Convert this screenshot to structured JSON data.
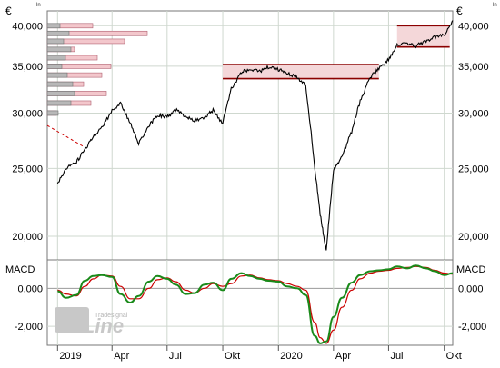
{
  "chart_data": [
    {
      "type": "candlestick",
      "currency_label": "€",
      "corner_mark": "ln",
      "y_scale": "log",
      "ylim": [
        18500,
        42000
      ],
      "y_ticks": [
        "40,000",
        "35,000",
        "30,000",
        "25,000",
        "20,000"
      ],
      "y_tick_values": [
        40000,
        35000,
        30000,
        25000,
        20000
      ],
      "x_tick_labels": [
        "2019",
        "Apr",
        "Jul",
        "Okt",
        "2020",
        "Apr",
        "Jul",
        "Okt"
      ],
      "grid": true,
      "series": [
        {
          "x": [
            "2019-01-01",
            "2019-01-15",
            "2019-02-01",
            "2019-02-15",
            "2019-03-01",
            "2019-03-15",
            "2019-04-01",
            "2019-04-15",
            "2019-05-01",
            "2019-05-15",
            "2019-06-01",
            "2019-06-15",
            "2019-07-01",
            "2019-07-15",
            "2019-08-01",
            "2019-08-15",
            "2019-09-01",
            "2019-09-15",
            "2019-10-01",
            "2019-10-15",
            "2019-11-01",
            "2019-11-15",
            "2019-12-01",
            "2019-12-15",
            "2020-01-01",
            "2020-01-15",
            "2020-02-01",
            "2020-02-15",
            "2020-03-01",
            "2020-03-10",
            "2020-03-20",
            "2020-04-01",
            "2020-04-15",
            "2020-05-01",
            "2020-05-15",
            "2020-06-01",
            "2020-06-15",
            "2020-07-01",
            "2020-07-15",
            "2020-08-01",
            "2020-08-15",
            "2020-09-01",
            "2020-09-15",
            "2020-10-01",
            "2020-10-15"
          ],
          "values": [
            23800,
            25000,
            25500,
            26600,
            27800,
            28600,
            30200,
            31000,
            29000,
            27200,
            28800,
            29800,
            29600,
            30300,
            29700,
            29300,
            29600,
            30300,
            29000,
            32500,
            34300,
            34700,
            34400,
            34900,
            34600,
            34200,
            33800,
            32800,
            25000,
            21500,
            19000,
            24800,
            26000,
            28200,
            31200,
            33800,
            34800,
            35800,
            37500,
            37800,
            37400,
            38100,
            38500,
            38800,
            40700
          ]
        }
      ],
      "volume_profile": {
        "price_levels": [
          40000,
          39000,
          38000,
          37000,
          36000,
          35000,
          34000,
          33000,
          32000,
          31000,
          30000
        ],
        "gray_volume": [
          14,
          24,
          18,
          26,
          20,
          16,
          22,
          28,
          30,
          26,
          12
        ],
        "pink_volume": [
          50,
          110,
          85,
          30,
          55,
          70,
          60,
          40,
          65,
          48,
          10
        ]
      },
      "resistance_bands": [
        {
          "from": "2019-10-01",
          "to": "2020-06-15",
          "low": 33600,
          "high": 35200
        },
        {
          "from": "2020-07-15",
          "to": "2020-10-10",
          "low": 37300,
          "high": 40000
        }
      ],
      "trendline": {
        "from_x": "2018-12-15",
        "from_y": 28800,
        "to_x": "2019-02-15",
        "to_y": 26800
      }
    },
    {
      "type": "line",
      "title": "MACD",
      "ylim": [
        -3000,
        1500
      ],
      "y_ticks": [
        "0,000",
        "-2,000"
      ],
      "y_tick_values": [
        0,
        -2000
      ],
      "x": [
        "2019-01-01",
        "2019-01-15",
        "2019-02-01",
        "2019-02-15",
        "2019-03-01",
        "2019-03-15",
        "2019-04-01",
        "2019-04-15",
        "2019-05-01",
        "2019-05-15",
        "2019-06-01",
        "2019-06-15",
        "2019-07-01",
        "2019-07-15",
        "2019-08-01",
        "2019-08-15",
        "2019-09-01",
        "2019-09-15",
        "2019-10-01",
        "2019-10-15",
        "2019-11-01",
        "2019-11-15",
        "2019-12-01",
        "2019-12-15",
        "2020-01-01",
        "2020-01-15",
        "2020-02-01",
        "2020-02-15",
        "2020-03-01",
        "2020-03-10",
        "2020-03-20",
        "2020-04-01",
        "2020-04-15",
        "2020-05-01",
        "2020-05-15",
        "2020-06-01",
        "2020-06-15",
        "2020-07-01",
        "2020-07-15",
        "2020-08-01",
        "2020-08-15",
        "2020-09-01",
        "2020-09-15",
        "2020-10-01",
        "2020-10-15"
      ],
      "series": [
        {
          "values": [
            -150,
            -500,
            -350,
            400,
            650,
            700,
            600,
            -300,
            -750,
            -400,
            350,
            650,
            500,
            200,
            -300,
            -250,
            200,
            300,
            -100,
            500,
            800,
            650,
            500,
            400,
            350,
            100,
            0,
            -350,
            -2500,
            -2900,
            -2800,
            -1500,
            -500,
            300,
            700,
            900,
            950,
            1000,
            1150,
            1050,
            1200,
            1050,
            900,
            700,
            800
          ]
        },
        {
          "values": [
            -100,
            -300,
            -400,
            100,
            500,
            700,
            650,
            100,
            -550,
            -550,
            0,
            450,
            550,
            350,
            -100,
            -250,
            0,
            250,
            100,
            250,
            650,
            700,
            550,
            450,
            400,
            250,
            100,
            -100,
            -1800,
            -2600,
            -2900,
            -2200,
            -1000,
            -100,
            500,
            800,
            900,
            950,
            1050,
            1100,
            1150,
            1100,
            950,
            800,
            750
          ]
        }
      ]
    }
  ],
  "watermark": {
    "brand_small": "Tradesignal",
    "brand_main": "onLine"
  }
}
